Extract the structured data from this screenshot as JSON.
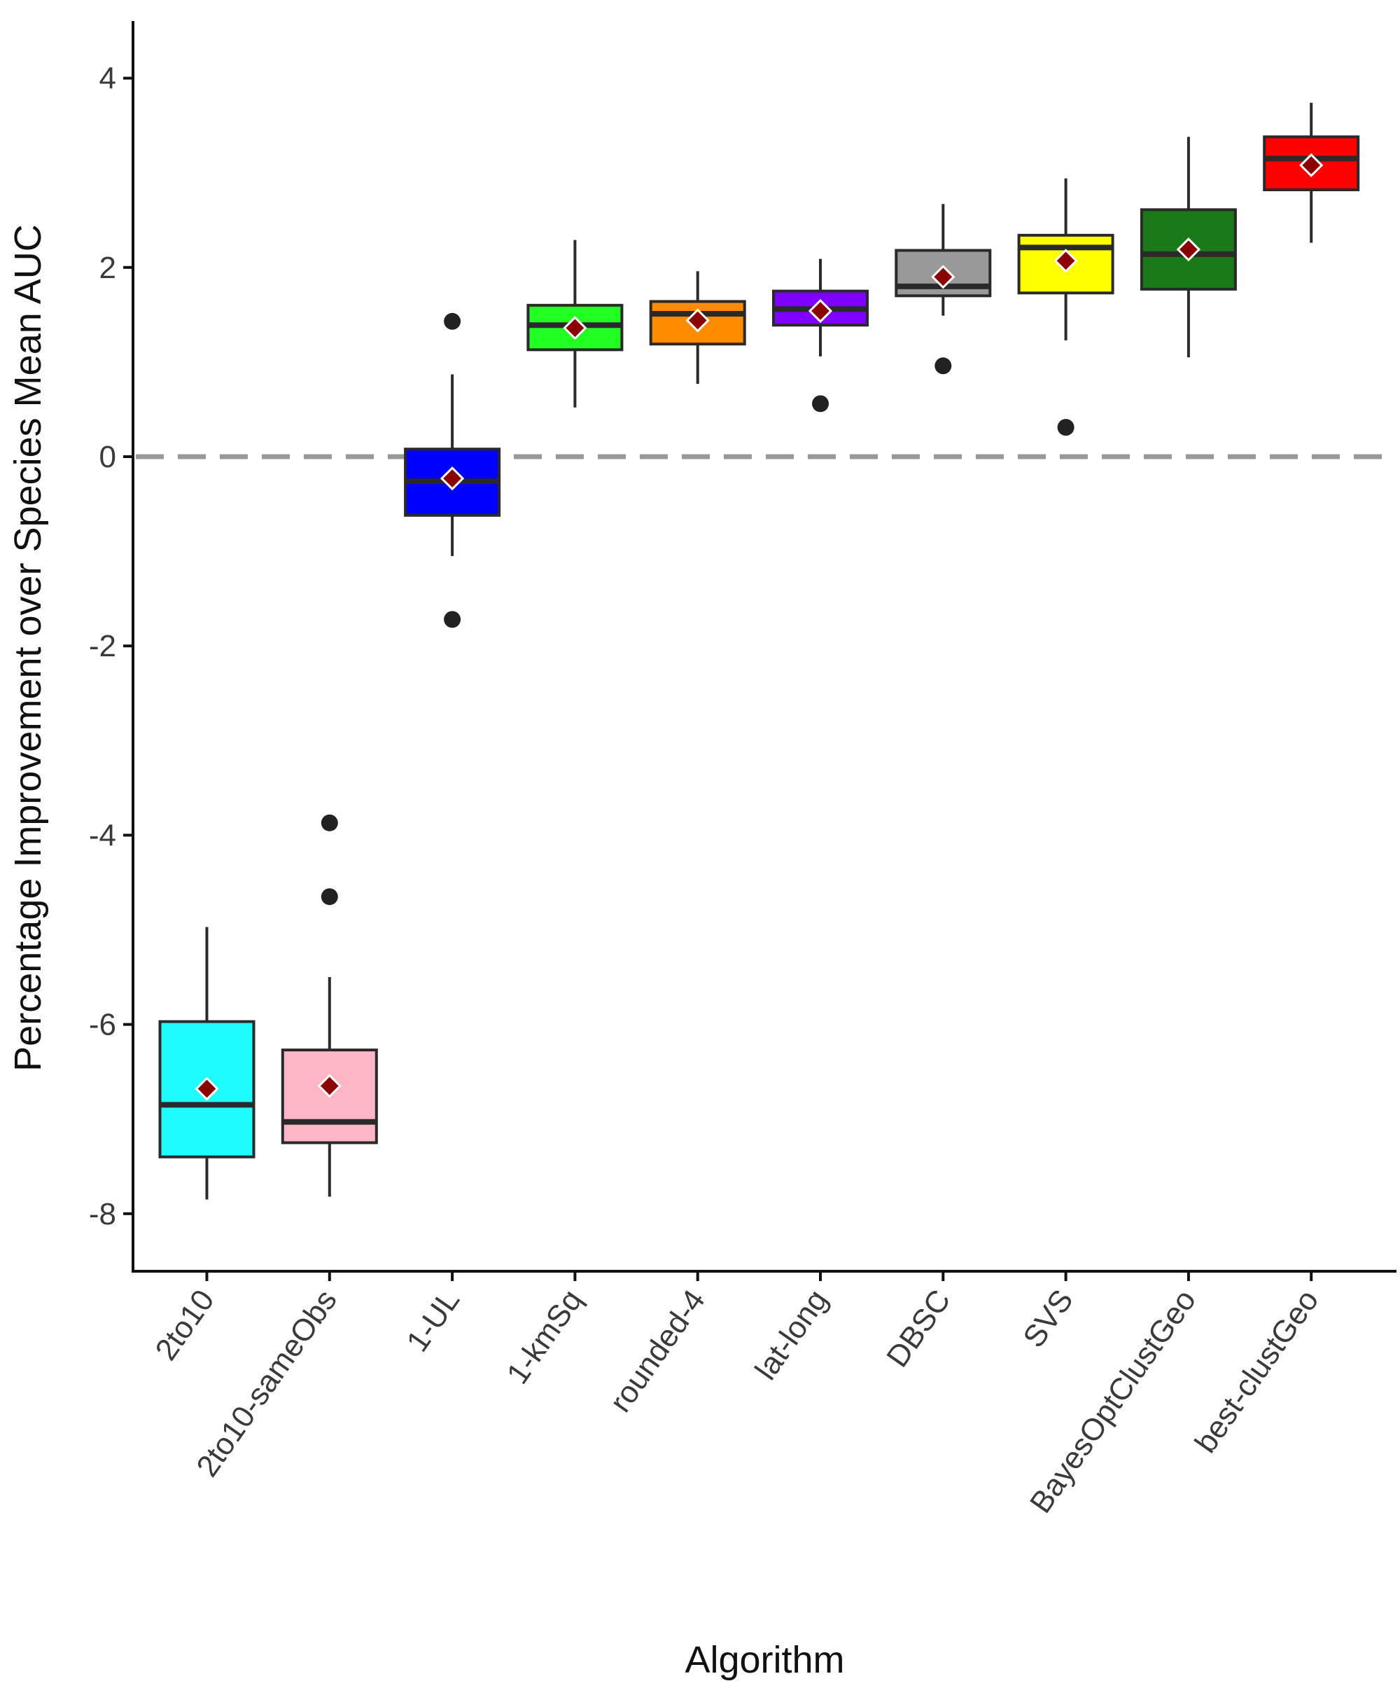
{
  "chart_data": {
    "type": "box",
    "title": "",
    "xlabel": "Algorithm",
    "ylabel": "Percentage Improvement over Species Mean AUC",
    "ylim": [
      -8.6,
      4.6
    ],
    "yticks": [
      4,
      2,
      0,
      -2,
      -4,
      -6,
      -8
    ],
    "ytick_labels": [
      "4",
      "2",
      "0",
      "-2",
      "-4",
      "-6",
      "-8"
    ],
    "reference_line": {
      "y": 0,
      "style": "dashed",
      "color": "#999999"
    },
    "mean_marker": {
      "shape": "diamond",
      "fill": "#8b0000",
      "stroke": "#ffffff"
    },
    "categories": [
      "2to10",
      "2to10-sameObs",
      "1-UL",
      "1-kmSq",
      "rounded-4",
      "lat-long",
      "DBSC",
      "SVS",
      "BayesOptClustGeo",
      "best-clustGeo"
    ],
    "series": [
      {
        "name": "2to10",
        "color": "#1ffcff",
        "median_line_color": "#2a2a2a",
        "whisker_low": -7.85,
        "q1": -7.4,
        "median": -6.85,
        "q3": -5.97,
        "whisker_high": -4.97,
        "mean": -6.68,
        "outliers": []
      },
      {
        "name": "2to10-sameObs",
        "color": "#ffb6c6",
        "median_line_color": "#2a2a2a",
        "whisker_low": -7.82,
        "q1": -7.25,
        "median": -7.03,
        "q3": -6.27,
        "whisker_high": -5.5,
        "mean": -6.65,
        "outliers": [
          -3.87,
          -4.65
        ]
      },
      {
        "name": "1-UL",
        "color": "#0000ff",
        "median_line_color": "#2a2a2a",
        "whisker_low": -1.05,
        "q1": -0.62,
        "median": -0.26,
        "q3": 0.08,
        "whisker_high": 0.87,
        "mean": -0.23,
        "outliers": [
          1.43,
          -1.72
        ]
      },
      {
        "name": "1-kmSq",
        "color": "#22ff22",
        "median_line_color": "#2a2a2a",
        "whisker_low": 0.52,
        "q1": 1.13,
        "median": 1.39,
        "q3": 1.6,
        "whisker_high": 2.29,
        "mean": 1.36,
        "outliers": []
      },
      {
        "name": "rounded-4",
        "color": "#ff8c00",
        "median_line_color": "#2a2a2a",
        "whisker_low": 0.77,
        "q1": 1.19,
        "median": 1.51,
        "q3": 1.64,
        "whisker_high": 1.96,
        "mean": 1.44,
        "outliers": []
      },
      {
        "name": "lat-long",
        "color": "#8000ff",
        "median_line_color": "#2a2a2a",
        "whisker_low": 1.06,
        "q1": 1.39,
        "median": 1.56,
        "q3": 1.75,
        "whisker_high": 2.09,
        "mean": 1.54,
        "outliers": [
          0.56
        ]
      },
      {
        "name": "DBSC",
        "color": "#999999",
        "median_line_color": "#2a2a2a",
        "whisker_low": 1.49,
        "q1": 1.7,
        "median": 1.8,
        "q3": 2.18,
        "whisker_high": 2.67,
        "mean": 1.9,
        "outliers": [
          0.96
        ]
      },
      {
        "name": "SVS",
        "color": "#ffff00",
        "median_line_color": "#2a2a2a",
        "whisker_low": 1.23,
        "q1": 1.73,
        "median": 2.21,
        "q3": 2.34,
        "whisker_high": 2.94,
        "mean": 2.07,
        "outliers": [
          0.31
        ]
      },
      {
        "name": "BayesOptClustGeo",
        "color": "#1a7a1a",
        "median_line_color": "#2a2a2a",
        "whisker_low": 1.05,
        "q1": 1.77,
        "median": 2.14,
        "q3": 2.61,
        "whisker_high": 3.38,
        "mean": 2.19,
        "outliers": []
      },
      {
        "name": "best-clustGeo",
        "color": "#ff0000",
        "median_line_color": "#2a2a2a",
        "whisker_low": 2.26,
        "q1": 2.82,
        "median": 3.15,
        "q3": 3.38,
        "whisker_high": 3.74,
        "mean": 3.08,
        "outliers": []
      }
    ]
  }
}
